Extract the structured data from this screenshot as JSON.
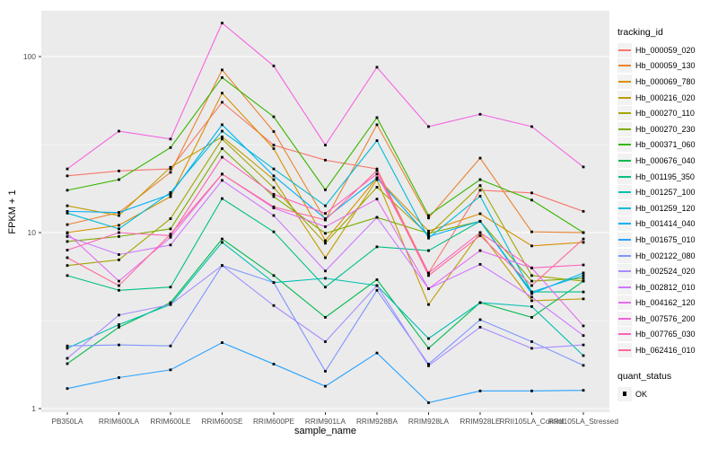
{
  "chart_data": {
    "type": "line",
    "title": "",
    "xlabel": "sample_name",
    "ylabel": "FPKM + 1",
    "y_scale": "log10",
    "ylim": [
      0.95,
      180
    ],
    "y_ticks": [
      {
        "label": "1",
        "value": 1
      },
      {
        "label": "10",
        "value": 10
      },
      {
        "label": "100",
        "value": 100
      }
    ],
    "y_minor_gridlines": [
      3.162,
      31.62
    ],
    "grid": "white major+minor gridlines on gray panel",
    "legend_position": "right",
    "panel_bg": "#EBEBEB",
    "gridline_color": "#FFFFFF",
    "tick_label_color": "#4D4D4D",
    "marker": "black filled square at every data point",
    "legend_color_title": "tracking_id",
    "legend_shape_title": "quant_status",
    "quant_status_values": [
      "OK"
    ],
    "categories": [
      "PB350LA",
      "RRIM600LA",
      "RRIM600LE",
      "RRIM600SE",
      "RRIM600PE",
      "RRIM901LA",
      "RRIM928BA",
      "RRIM928LA",
      "RRIM928LE",
      "RRII105LA_Control",
      "RRII105LA_Stressed"
    ],
    "series": [
      {
        "name": "Hb_000059_020",
        "color": "#F8766D",
        "values": [
          21,
          22.4,
          23,
          55,
          31.4,
          25.8,
          23,
          5.9,
          17.4,
          16.8,
          13.2
        ]
      },
      {
        "name": "Hb_000059_130",
        "color": "#EA8331",
        "values": [
          11.1,
          13,
          22,
          84,
          37.5,
          11.8,
          41,
          12.1,
          26.5,
          10.1,
          10
        ]
      },
      {
        "name": "Hb_000069_780",
        "color": "#D89000",
        "values": [
          10,
          11,
          16,
          62,
          30,
          9,
          20.5,
          10.2,
          12.8,
          8.4,
          8.8
        ]
      },
      {
        "name": "Hb_000216_020",
        "color": "#C09B00",
        "values": [
          14.2,
          12.5,
          23.5,
          35,
          20,
          7.2,
          20,
          3.9,
          10,
          4.1,
          4.2
        ]
      },
      {
        "name": "Hb_000270_110",
        "color": "#A3A500",
        "values": [
          6.5,
          7,
          12,
          34,
          18,
          8.7,
          18.1,
          9.7,
          18.5,
          5.7,
          5.3
        ]
      },
      {
        "name": "Hb_000270_230",
        "color": "#7CAE00",
        "values": [
          8.9,
          9.5,
          10.5,
          30,
          16,
          9.9,
          12.2,
          9.9,
          11.6,
          5.3,
          5.5
        ]
      },
      {
        "name": "Hb_000371_060",
        "color": "#39B600",
        "values": [
          17.4,
          20,
          30.4,
          76,
          45.5,
          17.5,
          45,
          12.5,
          20,
          15.3,
          10
        ]
      },
      {
        "name": "Hb_000676_040",
        "color": "#00BB4E",
        "values": [
          1.8,
          2.9,
          4,
          9.2,
          5.7,
          3.3,
          5.4,
          2.2,
          4,
          3.3,
          5.3
        ]
      },
      {
        "name": "Hb_001195_350",
        "color": "#00C087",
        "values": [
          5.7,
          4.7,
          4.9,
          15.6,
          10.1,
          4.9,
          8.3,
          7.9,
          11.6,
          4.6,
          4.6
        ]
      },
      {
        "name": "Hb_001257_100",
        "color": "#00C0B2",
        "values": [
          2.2,
          3,
          3.9,
          8.8,
          5.2,
          5.5,
          5,
          2.5,
          4,
          3.8,
          2
        ]
      },
      {
        "name": "Hb_001259_120",
        "color": "#00BCD8",
        "values": [
          12.9,
          10.5,
          16.9,
          37.7,
          23,
          14.2,
          33.3,
          9.3,
          16.1,
          4.6,
          5.7
        ]
      },
      {
        "name": "Hb_001414_040",
        "color": "#00B0F6",
        "values": [
          13.2,
          13,
          16.5,
          41,
          21,
          12,
          20.4,
          9.5,
          11.6,
          4.5,
          5.9
        ]
      },
      {
        "name": "Hb_001675_010",
        "color": "#29A3FF",
        "values": [
          1.3,
          1.5,
          1.66,
          2.37,
          1.79,
          1.34,
          2.07,
          1.08,
          1.26,
          1.26,
          1.27
        ]
      },
      {
        "name": "Hb_002122_080",
        "color": "#7C96FF",
        "values": [
          2.27,
          2.3,
          2.27,
          6.5,
          5.2,
          1.63,
          4.7,
          1.79,
          3.2,
          2.4,
          1.76
        ]
      },
      {
        "name": "Hb_002524_020",
        "color": "#A98CFF",
        "values": [
          1.93,
          3.4,
          3.9,
          6.5,
          3.85,
          2.4,
          5,
          1.75,
          2.9,
          2.2,
          2.3
        ]
      },
      {
        "name": "Hb_002812_010",
        "color": "#CF78FF",
        "values": [
          9.5,
          7.5,
          8.5,
          19.8,
          12.5,
          6.05,
          12.2,
          4.8,
          6.6,
          4.3,
          2.6
        ]
      },
      {
        "name": "Hb_004162_120",
        "color": "#E76BF3",
        "values": [
          9.9,
          5.3,
          9.4,
          21.5,
          13.8,
          10.8,
          15.5,
          4.8,
          7.9,
          6.3,
          2.95
        ]
      },
      {
        "name": "Hb_007576_200",
        "color": "#F763E0",
        "values": [
          23,
          37.7,
          34,
          155,
          88.5,
          31.4,
          87,
          40,
          47,
          40,
          23.6
        ]
      },
      {
        "name": "Hb_007765_030",
        "color": "#FF62BC",
        "values": [
          7.95,
          10,
          9.6,
          26.8,
          16.5,
          12.85,
          21.5,
          5.9,
          10,
          6.3,
          6.55
        ]
      },
      {
        "name": "Hb_062416_010",
        "color": "#FF6A98",
        "values": [
          7.2,
          5,
          9.8,
          21.5,
          14,
          11.8,
          22.5,
          5.7,
          9.6,
          5,
          9.2
        ]
      }
    ]
  }
}
